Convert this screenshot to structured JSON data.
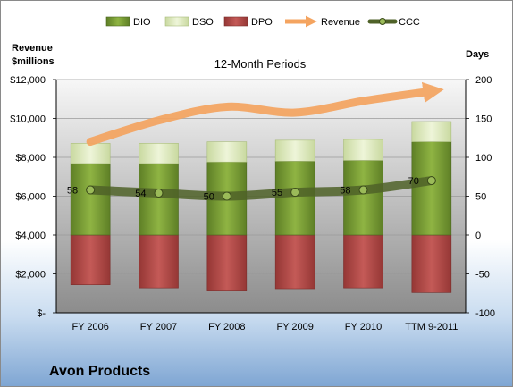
{
  "company": "Avon Products",
  "chart_data": {
    "type": "bar",
    "subtitle": "12-Month Periods",
    "left_axis": {
      "label_line1": "Revenue",
      "label_line2": "$millions",
      "ylim": [
        0,
        12000
      ],
      "ticks": [
        0,
        2000,
        4000,
        6000,
        8000,
        10000,
        12000
      ],
      "tick_labels": [
        "$-",
        "$2,000",
        "$4,000",
        "$6,000",
        "$8,000",
        "$10,000",
        "$12,000"
      ]
    },
    "right_axis": {
      "label": "Days",
      "ylim": [
        -100,
        200
      ],
      "ticks": [
        -100,
        -50,
        0,
        50,
        100,
        150,
        200
      ],
      "tick_labels": [
        "-100",
        "-50",
        "0",
        "50",
        "100",
        "150",
        "200"
      ]
    },
    "categories": [
      "FY 2006",
      "FY 2007",
      "FY 2008",
      "FY 2009",
      "FY 2010",
      "TTM 9-2011"
    ],
    "series": [
      {
        "name": "DIO",
        "axis": "right",
        "values": [
          92,
          92,
          94,
          95,
          96,
          120
        ],
        "color": "#7fa636"
      },
      {
        "name": "DSO",
        "axis": "right",
        "values": [
          26,
          26,
          26,
          27,
          27,
          26
        ],
        "color": "#e0ecc0"
      },
      {
        "name": "DPO",
        "axis": "right",
        "values": [
          -64,
          -68,
          -72,
          -69,
          -68,
          -74
        ],
        "color": "#c0504d"
      },
      {
        "name": "Revenue",
        "axis": "left",
        "values": [
          8800,
          9900,
          10600,
          10300,
          10900,
          11400
        ],
        "color": "#f4a460"
      },
      {
        "name": "CCC",
        "axis": "right",
        "values": [
          58,
          54,
          50,
          55,
          58,
          70
        ],
        "color": "#4f6228"
      }
    ],
    "data_labels": [
      "58",
      "54",
      "50",
      "55",
      "58",
      "70"
    ],
    "legend_position": "top"
  }
}
